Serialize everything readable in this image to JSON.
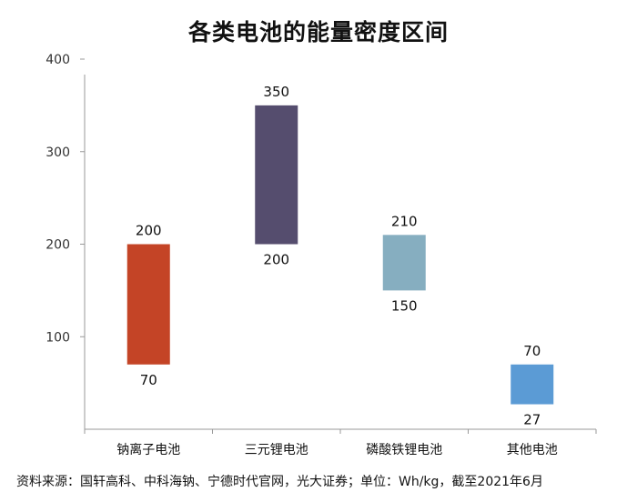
{
  "chart_data": {
    "type": "bar",
    "subtype": "floating-range",
    "title": "各类电池的能量密度区间",
    "categories": [
      "钠离子电池",
      "三元锂电池",
      "磷酸铁锂电池",
      "其他电池"
    ],
    "series": [
      {
        "ranges": [
          [
            70,
            200
          ],
          [
            200,
            350
          ],
          [
            150,
            210
          ],
          [
            27,
            70
          ]
        ],
        "colors": [
          "#C44426",
          "#554D6E",
          "#86AEC0",
          "#5B9BD5"
        ]
      }
    ],
    "ylim": [
      0,
      400
    ],
    "yticks": [
      100,
      200,
      300,
      400
    ],
    "grid": false,
    "source_note": "资料来源：国轩高科、中科海钠、宁德时代官网，光大证券；单位：Wh/kg，截至2021年6月"
  }
}
